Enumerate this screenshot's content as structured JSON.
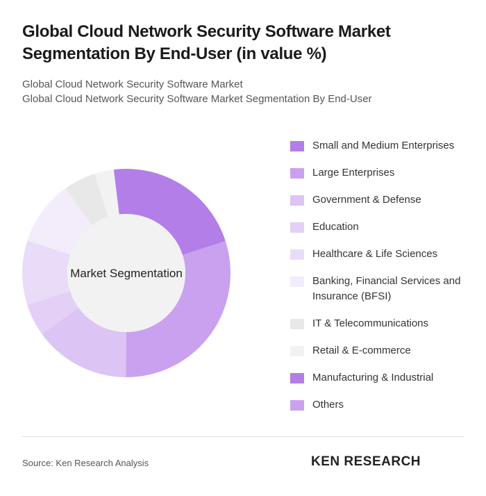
{
  "chart_data": {
    "type": "donut",
    "title": "Global Cloud Network Security Software Market Segmentation By End-User (in value %)",
    "subtitle": [
      "Global Cloud Network Security Software Market",
      "Global Cloud Network Security Software Market Segmentation By End-User"
    ],
    "center_label": "Market Segmentation",
    "categories": [
      "Small and Medium Enterprises",
      "Large Enterprises",
      "Government & Defense",
      "Education",
      "Healthcare & Life Sciences",
      "Banking, Financial Services and Insurance (BFSI)",
      "IT & Telecommunications",
      "Retail & E-commerce",
      "Manufacturing & Industrial",
      "Others"
    ],
    "values": [
      22,
      30,
      15,
      5,
      10,
      10,
      5,
      3,
      0,
      0
    ],
    "colors": [
      "#b37ee8",
      "#c9a1ef",
      "#dcc4f5",
      "#e4d0f7",
      "#e9dcf8",
      "#f2ecfb",
      "#e8e8e8",
      "#f2f2f2",
      "#b37ee8",
      "#c9a1ef"
    ],
    "source": "Source: Ken Research Analysis",
    "brand": "KEN RESEARCH"
  }
}
